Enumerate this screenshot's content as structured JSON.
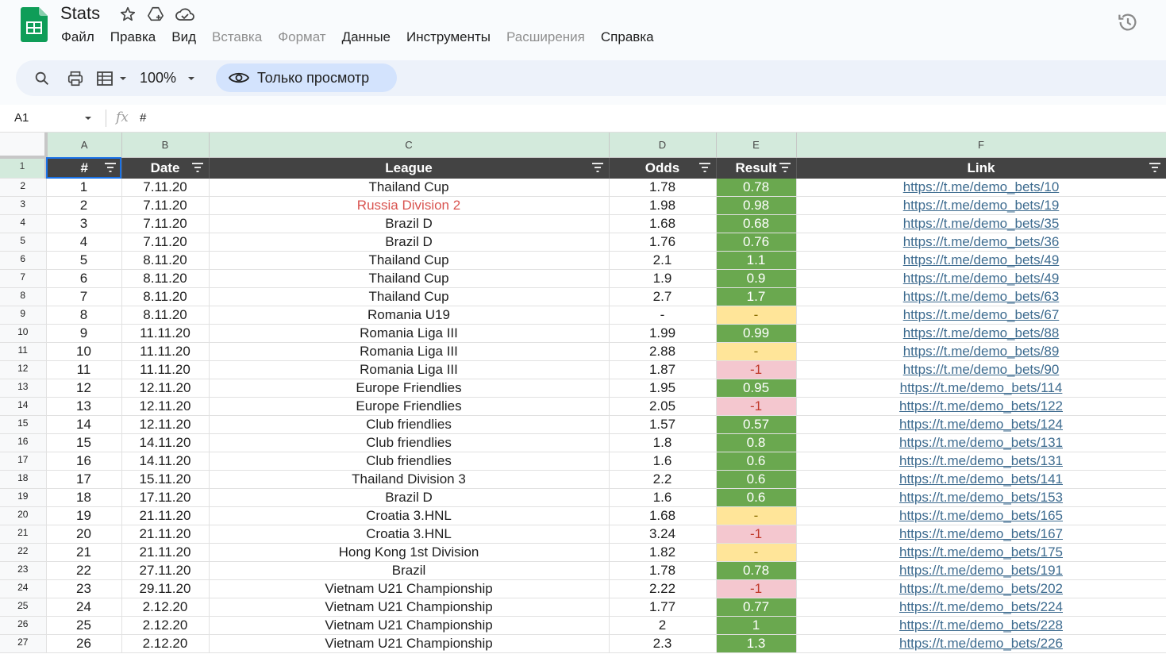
{
  "doc": {
    "title": "Stats"
  },
  "menu": [
    {
      "label": "Файл",
      "disabled": false
    },
    {
      "label": "Правка",
      "disabled": false
    },
    {
      "label": "Вид",
      "disabled": false
    },
    {
      "label": "Вставка",
      "disabled": true
    },
    {
      "label": "Формат",
      "disabled": true
    },
    {
      "label": "Данные",
      "disabled": false
    },
    {
      "label": "Инструменты",
      "disabled": false
    },
    {
      "label": "Расширения",
      "disabled": true
    },
    {
      "label": "Справка",
      "disabled": false
    }
  ],
  "toolbar": {
    "zoom": "100%",
    "view_only_label": "Только просмотр"
  },
  "formula_bar": {
    "cell_ref": "A1",
    "fx": "fx",
    "value": "#"
  },
  "columns": [
    "A",
    "B",
    "C",
    "D",
    "E",
    "F"
  ],
  "headers": [
    "#",
    "Date",
    "League",
    "Odds",
    "Result",
    "Link"
  ],
  "colors": {
    "win": "#6aa84f",
    "push": "#ffe599",
    "loss": "#f4c7cf",
    "header_bg": "#434343",
    "accent": "#d3e3fd"
  },
  "rows": [
    {
      "n": "1",
      "date": "7.11.20",
      "league": "Thailand Cup",
      "odds": "1.78",
      "result": "0.78",
      "status": "win",
      "link": "https://t.me/demo_bets/10"
    },
    {
      "n": "2",
      "date": "7.11.20",
      "league": "Russia Division 2",
      "odds": "1.98",
      "result": "0.98",
      "status": "win",
      "link": "https://t.me/demo_bets/19",
      "league_red": true
    },
    {
      "n": "3",
      "date": "7.11.20",
      "league": "Brazil D",
      "odds": "1.68",
      "result": "0.68",
      "status": "win",
      "link": "https://t.me/demo_bets/35"
    },
    {
      "n": "4",
      "date": "7.11.20",
      "league": "Brazil D",
      "odds": "1.76",
      "result": "0.76",
      "status": "win",
      "link": "https://t.me/demo_bets/36"
    },
    {
      "n": "5",
      "date": "8.11.20",
      "league": "Thailand Cup",
      "odds": "2.1",
      "result": "1.1",
      "status": "win",
      "link": "https://t.me/demo_bets/49"
    },
    {
      "n": "6",
      "date": "8.11.20",
      "league": "Thailand Cup",
      "odds": "1.9",
      "result": "0.9",
      "status": "win",
      "link": "https://t.me/demo_bets/49"
    },
    {
      "n": "7",
      "date": "8.11.20",
      "league": "Thailand Cup",
      "odds": "2.7",
      "result": "1.7",
      "status": "win",
      "link": "https://t.me/demo_bets/63"
    },
    {
      "n": "8",
      "date": "8.11.20",
      "league": "Romania U19",
      "odds": "-",
      "result": "-",
      "status": "push",
      "link": "https://t.me/demo_bets/67"
    },
    {
      "n": "9",
      "date": "11.11.20",
      "league": "Romania Liga III",
      "odds": "1.99",
      "result": "0.99",
      "status": "win",
      "link": "https://t.me/demo_bets/88"
    },
    {
      "n": "10",
      "date": "11.11.20",
      "league": "Romania Liga III",
      "odds": "2.88",
      "result": "-",
      "status": "push",
      "link": "https://t.me/demo_bets/89"
    },
    {
      "n": "11",
      "date": "11.11.20",
      "league": "Romania Liga III",
      "odds": "1.87",
      "result": "-1",
      "status": "loss",
      "link": "https://t.me/demo_bets/90"
    },
    {
      "n": "12",
      "date": "12.11.20",
      "league": "Europe Friendlies",
      "odds": "1.95",
      "result": "0.95",
      "status": "win",
      "link": "https://t.me/demo_bets/114"
    },
    {
      "n": "13",
      "date": "12.11.20",
      "league": "Europe Friendlies",
      "odds": "2.05",
      "result": "-1",
      "status": "loss",
      "link": "https://t.me/demo_bets/122"
    },
    {
      "n": "14",
      "date": "12.11.20",
      "league": "Club friendlies",
      "odds": "1.57",
      "result": "0.57",
      "status": "win",
      "link": "https://t.me/demo_bets/124"
    },
    {
      "n": "15",
      "date": "14.11.20",
      "league": "Club friendlies",
      "odds": "1.8",
      "result": "0.8",
      "status": "win",
      "link": "https://t.me/demo_bets/131"
    },
    {
      "n": "16",
      "date": "14.11.20",
      "league": "Club friendlies",
      "odds": "1.6",
      "result": "0.6",
      "status": "win",
      "link": "https://t.me/demo_bets/131"
    },
    {
      "n": "17",
      "date": "15.11.20",
      "league": "Thailand Division 3",
      "odds": "2.2",
      "result": "0.6",
      "status": "win",
      "link": "https://t.me/demo_bets/141"
    },
    {
      "n": "18",
      "date": "17.11.20",
      "league": "Brazil D",
      "odds": "1.6",
      "result": "0.6",
      "status": "win",
      "link": "https://t.me/demo_bets/153"
    },
    {
      "n": "19",
      "date": "21.11.20",
      "league": "Croatia 3.HNL",
      "odds": "1.68",
      "result": "-",
      "status": "push",
      "link": "https://t.me/demo_bets/165"
    },
    {
      "n": "20",
      "date": "21.11.20",
      "league": "Croatia 3.HNL",
      "odds": "3.24",
      "result": "-1",
      "status": "loss",
      "link": "https://t.me/demo_bets/167"
    },
    {
      "n": "21",
      "date": "21.11.20",
      "league": "Hong Kong 1st Division",
      "odds": "1.82",
      "result": "-",
      "status": "push",
      "link": "https://t.me/demo_bets/175"
    },
    {
      "n": "22",
      "date": "27.11.20",
      "league": "Brazil",
      "odds": "1.78",
      "result": "0.78",
      "status": "win",
      "link": "https://t.me/demo_bets/191"
    },
    {
      "n": "23",
      "date": "29.11.20",
      "league": "Vietnam U21 Championship",
      "odds": "2.22",
      "result": "-1",
      "status": "loss",
      "link": "https://t.me/demo_bets/202"
    },
    {
      "n": "24",
      "date": "2.12.20",
      "league": "Vietnam U21 Championship",
      "odds": "1.77",
      "result": "0.77",
      "status": "win",
      "link": "https://t.me/demo_bets/224"
    },
    {
      "n": "25",
      "date": "2.12.20",
      "league": "Vietnam U21 Championship",
      "odds": "2",
      "result": "1",
      "status": "win",
      "link": "https://t.me/demo_bets/228"
    },
    {
      "n": "26",
      "date": "2.12.20",
      "league": "Vietnam U21 Championship",
      "odds": "2.3",
      "result": "1.3",
      "status": "win",
      "link": "https://t.me/demo_bets/226"
    }
  ]
}
